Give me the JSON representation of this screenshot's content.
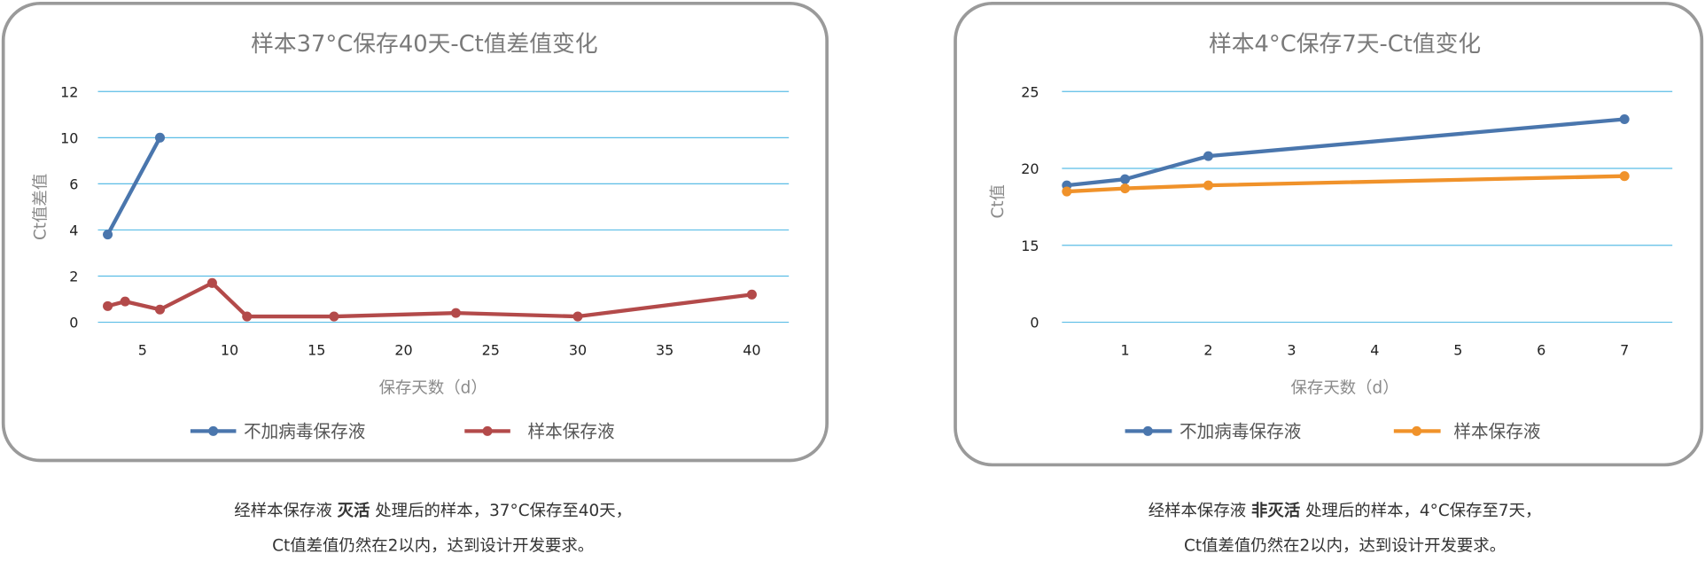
{
  "chart_data": [
    {
      "type": "line",
      "title": "样本37°C保存40天-Ct值差值变化",
      "xlabel": "保存天数（d）",
      "ylabel": "Ct值差值",
      "x_ticks": [
        5,
        10,
        15,
        20,
        25,
        30,
        35,
        40
      ],
      "y_ticks": [
        0,
        2,
        4,
        6,
        10,
        12
      ],
      "xlim": [
        0,
        42
      ],
      "ylim": [
        0,
        12
      ],
      "grid": true,
      "legend_position": "bottom",
      "series": [
        {
          "name": "不加病毒保存液",
          "color": "#4a76ad",
          "x": [
            3,
            6
          ],
          "y": [
            3.8,
            10
          ]
        },
        {
          "name": "样本保存液",
          "color": "#b34a4a",
          "x": [
            3,
            4,
            6,
            9,
            11,
            16,
            23,
            30,
            40
          ],
          "y": [
            0.7,
            0.9,
            0.55,
            1.7,
            0.25,
            0.25,
            0.4,
            0.25,
            1.2
          ]
        }
      ],
      "caption": {
        "pre": "经样本保存液 ",
        "bold": "灭活",
        "post": " 处理后的样本，37°C保存至40天，",
        "line2": "Ct值差值仍然在2以内，达到设计开发要求。"
      }
    },
    {
      "type": "line",
      "title": "样本4°C保存7天-Ct值变化",
      "xlabel": "保存天数（d）",
      "ylabel": "Ct值",
      "x_ticks": [
        1,
        2,
        3,
        4,
        5,
        6,
        7
      ],
      "y_ticks": [
        0,
        15,
        20,
        25
      ],
      "xlim": [
        0,
        7.4
      ],
      "ylim": [
        0,
        25
      ],
      "grid": true,
      "legend_position": "bottom",
      "series": [
        {
          "name": "不加病毒保存液",
          "color": "#4a76ad",
          "x": [
            0.3,
            1,
            2,
            7
          ],
          "y": [
            18.9,
            19.3,
            20.8,
            23.2
          ]
        },
        {
          "name": "样本保存液",
          "color": "#f0922a",
          "x": [
            0.3,
            1,
            2,
            7
          ],
          "y": [
            18.5,
            18.7,
            18.9,
            19.5
          ]
        }
      ],
      "caption": {
        "pre": "经样本保存液 ",
        "bold": "非灭活",
        "post": " 处理后的样本，4°C保存至7天，",
        "line2": "Ct值差值仍然在2以内，达到设计开发要求。"
      }
    }
  ]
}
